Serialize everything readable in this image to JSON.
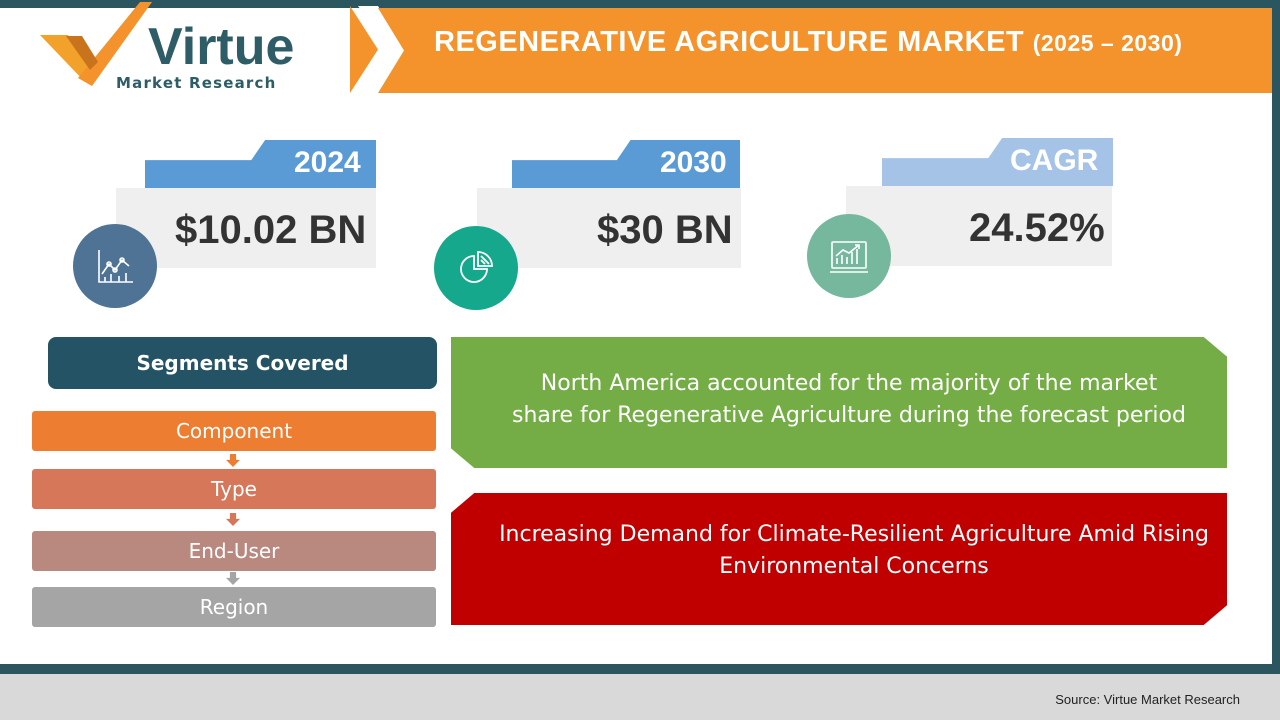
{
  "logo": {
    "brand": "Virtue",
    "tagline": "Market Research"
  },
  "header": {
    "title": "REGENERATIVE  AGRICULTURE  MARKET",
    "years": "(2025 – 2030)"
  },
  "stats": [
    {
      "label": "2024",
      "value": "$10.02 BN",
      "icon": "line-chart-icon",
      "tab_color": "#5b9bd5",
      "icon_color": "#4f7394"
    },
    {
      "label": "2030",
      "value": "$30 BN",
      "icon": "pie-chart-icon",
      "tab_color": "#5b9bd5",
      "icon_color": "#16a88d"
    },
    {
      "label": "CAGR",
      "value": "24.52%",
      "icon": "growth-chart-icon",
      "tab_color": "#a5c3e6",
      "icon_color": "#76b89e"
    }
  ],
  "segments": {
    "header": "Segments Covered",
    "items": [
      {
        "label": "Component",
        "color": "#ed7d31"
      },
      {
        "label": "Type",
        "color": "#d6775a"
      },
      {
        "label": "End-User",
        "color": "#b98980"
      },
      {
        "label": "Region",
        "color": "#a5a5a5"
      }
    ]
  },
  "highlights": {
    "region_text_1": "North America accounted for the majority of the market",
    "region_text_2": "share for Regenerative Agriculture during the forecast period",
    "driver_text_1": "Increasing Demand for Climate-Resilient Agriculture Amid Rising",
    "driver_text_2": "Environmental Concerns"
  },
  "footer": {
    "source": "Source: Virtue Market Research"
  }
}
